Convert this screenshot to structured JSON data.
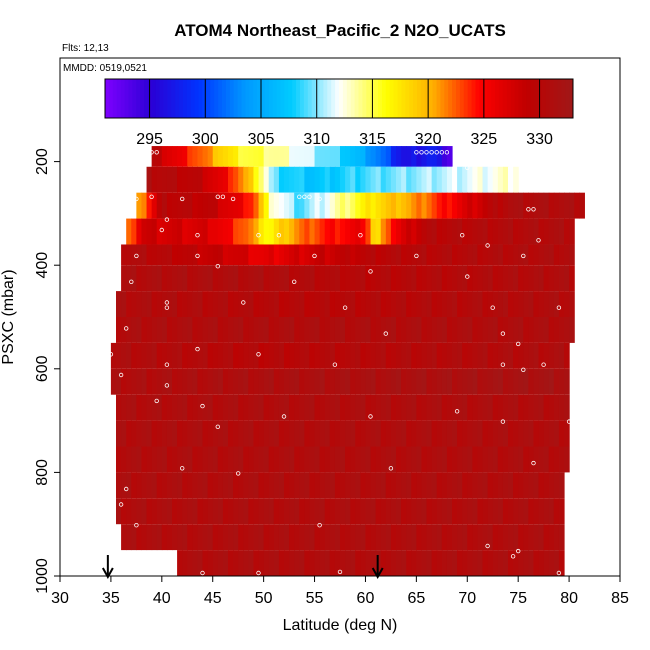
{
  "chart_data": {
    "type": "heatmap",
    "title": "ATOM4 Northeast_Pacific_2 N2O_UCATS",
    "annotations": [
      "Flts: 12,13",
      "MMDD: 0519,0521"
    ],
    "xlabel": "Latitude (deg N)",
    "ylabel": "PSXC (mbar)",
    "xlim": [
      30,
      85
    ],
    "ylim": [
      1000,
      0
    ],
    "x_ticks": [
      30,
      35,
      40,
      45,
      50,
      55,
      60,
      65,
      70,
      75,
      80,
      85
    ],
    "y_ticks": [
      200,
      400,
      600,
      800,
      1000
    ],
    "colorbar": {
      "range": [
        291,
        333
      ],
      "ticks": [
        295,
        300,
        305,
        310,
        315,
        320,
        325,
        330
      ],
      "colors": [
        "#7f00ff",
        "#2a00d5",
        "#0033ff",
        "#0099ff",
        "#00ccff",
        "#ffffff",
        "#ffff00",
        "#ffb000",
        "#ff0000",
        "#c00000",
        "#a01818"
      ]
    },
    "arrows_at_latitude": [
      34.7,
      61.2
    ],
    "rows": [
      {
        "p": [
          170,
          210
        ],
        "x0": 39.0,
        "x1": 68.5,
        "stops": [
          [
            39.0,
            330
          ],
          [
            44.0,
            322
          ],
          [
            47.5,
            316
          ],
          [
            51.0,
            314
          ],
          [
            54.5,
            311
          ],
          [
            58.0,
            308
          ],
          [
            61.0,
            303
          ],
          [
            64.0,
            296
          ],
          [
            66.5,
            298
          ],
          [
            68.5,
            293
          ]
        ]
      },
      {
        "p": [
          210,
          260
        ],
        "x0": 38.5,
        "x1": 75.0,
        "stops": [
          [
            38.5,
            331
          ],
          [
            44.0,
            329
          ],
          [
            47.0,
            324
          ],
          [
            49.5,
            316
          ],
          [
            51.0,
            309
          ],
          [
            55.0,
            307
          ],
          [
            60.0,
            309
          ],
          [
            68.0,
            311
          ],
          [
            75.0,
            313
          ]
        ]
      },
      {
        "p": [
          260,
          310
        ],
        "x0": 37.5,
        "x1": 81.5,
        "stops": [
          [
            37.5,
            319
          ],
          [
            40.0,
            330
          ],
          [
            45.0,
            329
          ],
          [
            49.0,
            324
          ],
          [
            50.5,
            314
          ],
          [
            53.5,
            309
          ],
          [
            57.0,
            313
          ],
          [
            61.0,
            318
          ],
          [
            65.0,
            321
          ],
          [
            70.0,
            327
          ],
          [
            74.0,
            331
          ],
          [
            81.5,
            331
          ]
        ]
      },
      {
        "p": [
          310,
          360
        ],
        "x0": 36.5,
        "x1": 80.5,
        "stops": [
          [
            36.5,
            320
          ],
          [
            38.0,
            328
          ],
          [
            45.0,
            327
          ],
          [
            48.5,
            322
          ],
          [
            50.5,
            316
          ],
          [
            53.0,
            321
          ],
          [
            56.0,
            324
          ],
          [
            60.0,
            326
          ],
          [
            61.0,
            316
          ],
          [
            62.5,
            325
          ],
          [
            66.0,
            330
          ],
          [
            80.5,
            331
          ]
        ]
      },
      {
        "p": [
          360,
          400
        ],
        "x0": 36.0,
        "x1": 80.5,
        "stops": [
          [
            36.0,
            331
          ],
          [
            47.0,
            328
          ],
          [
            50.0,
            326
          ],
          [
            55.0,
            328
          ],
          [
            62.0,
            330
          ],
          [
            80.5,
            331
          ]
        ]
      },
      {
        "p": [
          400,
          450
        ],
        "x0": 36.0,
        "x1": 80.5,
        "stops": [
          [
            36.0,
            331
          ],
          [
            50.0,
            331
          ],
          [
            60.0,
            330
          ],
          [
            80.5,
            331
          ]
        ]
      },
      {
        "p": [
          450,
          500
        ],
        "x0": 35.5,
        "x1": 80.5,
        "stops": [
          [
            35.5,
            331
          ],
          [
            55.0,
            330
          ],
          [
            80.5,
            331
          ]
        ]
      },
      {
        "p": [
          500,
          550
        ],
        "x0": 35.5,
        "x1": 80.5,
        "stops": [
          [
            35.5,
            331
          ],
          [
            80.5,
            331
          ]
        ]
      },
      {
        "p": [
          550,
          600
        ],
        "x0": 35.0,
        "x1": 80.0,
        "stops": [
          [
            35.0,
            331
          ],
          [
            50.0,
            330
          ],
          [
            80.0,
            331
          ]
        ]
      },
      {
        "p": [
          600,
          650
        ],
        "x0": 35.0,
        "x1": 80.0,
        "stops": [
          [
            35.0,
            331
          ],
          [
            80.0,
            332
          ]
        ]
      },
      {
        "p": [
          650,
          700
        ],
        "x0": 35.5,
        "x1": 80.0,
        "stops": [
          [
            35.5,
            331
          ],
          [
            80.0,
            331
          ]
        ]
      },
      {
        "p": [
          700,
          750
        ],
        "x0": 35.5,
        "x1": 80.0,
        "stops": [
          [
            35.5,
            331
          ],
          [
            80.0,
            331
          ]
        ]
      },
      {
        "p": [
          750,
          800
        ],
        "x0": 35.5,
        "x1": 80.0,
        "stops": [
          [
            35.5,
            331
          ],
          [
            80.0,
            331
          ]
        ]
      },
      {
        "p": [
          800,
          850
        ],
        "x0": 35.5,
        "x1": 79.5,
        "stops": [
          [
            35.5,
            331
          ],
          [
            79.5,
            331
          ]
        ]
      },
      {
        "p": [
          850,
          900
        ],
        "x0": 35.5,
        "x1": 79.5,
        "stops": [
          [
            35.5,
            331
          ],
          [
            79.5,
            331
          ]
        ]
      },
      {
        "p": [
          900,
          950
        ],
        "x0": 36.0,
        "x1": 79.5,
        "stops": [
          [
            36.0,
            331
          ],
          [
            79.5,
            331
          ]
        ]
      },
      {
        "p": [
          950,
          1000
        ],
        "x0": 41.5,
        "x1": 79.5,
        "stops": [
          [
            41.5,
            331
          ],
          [
            79.5,
            331
          ]
        ]
      }
    ],
    "samples": [
      [
        39.0,
        182
      ],
      [
        39.5,
        182
      ],
      [
        65.0,
        182
      ],
      [
        65.5,
        182
      ],
      [
        66.0,
        182
      ],
      [
        66.5,
        182
      ],
      [
        67.0,
        182
      ],
      [
        67.5,
        182
      ],
      [
        68.0,
        182
      ],
      [
        70.0,
        212
      ],
      [
        37.5,
        272
      ],
      [
        39.0,
        268
      ],
      [
        42.0,
        272
      ],
      [
        45.5,
        268
      ],
      [
        46.0,
        268
      ],
      [
        47.0,
        272
      ],
      [
        53.5,
        268
      ],
      [
        54.0,
        268
      ],
      [
        54.5,
        268
      ],
      [
        55.5,
        272
      ],
      [
        76.0,
        292
      ],
      [
        76.5,
        292
      ],
      [
        40.5,
        312
      ],
      [
        40.0,
        332
      ],
      [
        43.5,
        342
      ],
      [
        49.5,
        342
      ],
      [
        51.5,
        342
      ],
      [
        59.5,
        342
      ],
      [
        69.5,
        342
      ],
      [
        77.0,
        352
      ],
      [
        72.0,
        362
      ],
      [
        37.5,
        382
      ],
      [
        43.5,
        382
      ],
      [
        55.0,
        382
      ],
      [
        65.0,
        382
      ],
      [
        75.5,
        382
      ],
      [
        45.5,
        402
      ],
      [
        60.5,
        412
      ],
      [
        70.0,
        422
      ],
      [
        37.0,
        432
      ],
      [
        53.0,
        432
      ],
      [
        40.5,
        472
      ],
      [
        48.0,
        472
      ],
      [
        58.0,
        482
      ],
      [
        72.5,
        482
      ],
      [
        40.5,
        482
      ],
      [
        79.0,
        482
      ],
      [
        36.5,
        522
      ],
      [
        62.0,
        532
      ],
      [
        73.5,
        532
      ],
      [
        75.0,
        552
      ],
      [
        43.5,
        562
      ],
      [
        49.5,
        572
      ],
      [
        35.0,
        572
      ],
      [
        40.5,
        592
      ],
      [
        77.5,
        592
      ],
      [
        73.5,
        592
      ],
      [
        57.0,
        592
      ],
      [
        36.0,
        612
      ],
      [
        75.5,
        602
      ],
      [
        40.5,
        632
      ],
      [
        39.5,
        662
      ],
      [
        44.0,
        672
      ],
      [
        69.0,
        682
      ],
      [
        52.0,
        692
      ],
      [
        45.5,
        712
      ],
      [
        60.5,
        692
      ],
      [
        73.5,
        702
      ],
      [
        80.0,
        702
      ],
      [
        35.0,
        782
      ],
      [
        42.0,
        792
      ],
      [
        47.5,
        802
      ],
      [
        62.5,
        792
      ],
      [
        76.5,
        782
      ],
      [
        36.5,
        832
      ],
      [
        36.0,
        862
      ],
      [
        37.5,
        902
      ],
      [
        55.5,
        902
      ],
      [
        72.0,
        942
      ],
      [
        75.0,
        952
      ],
      [
        74.5,
        962
      ],
      [
        44.0,
        1002
      ],
      [
        49.5,
        1002
      ],
      [
        57.5,
        992
      ],
      [
        79.0,
        1002
      ]
    ]
  }
}
